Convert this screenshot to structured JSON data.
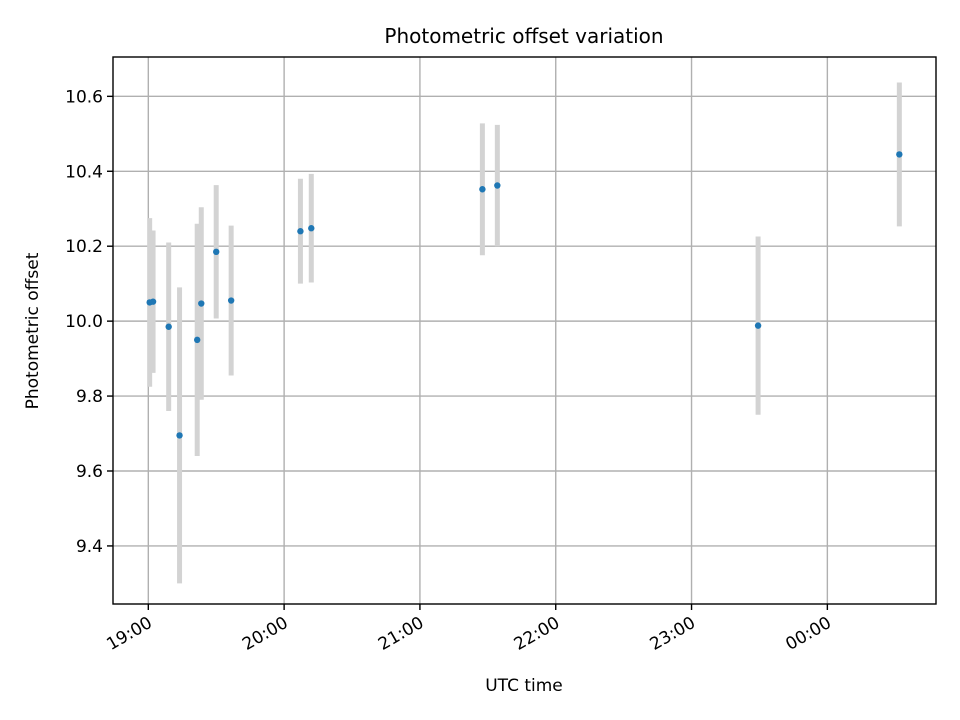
{
  "chart_data": {
    "type": "scatter",
    "title": "Photometric offset variation",
    "xlabel": "UTC time",
    "ylabel": "Photometric offset",
    "x_unit": "hour",
    "x_ticks": [
      {
        "value": 19,
        "label": "19:00"
      },
      {
        "value": 20,
        "label": "20:00"
      },
      {
        "value": 21,
        "label": "21:00"
      },
      {
        "value": 22,
        "label": "22:00"
      },
      {
        "value": 23,
        "label": "23:00"
      },
      {
        "value": 24,
        "label": "00:00"
      }
    ],
    "y_ticks": [
      {
        "value": 9.4,
        "label": "9.4"
      },
      {
        "value": 9.6,
        "label": "9.6"
      },
      {
        "value": 9.8,
        "label": "9.8"
      },
      {
        "value": 10.0,
        "label": "10.0"
      },
      {
        "value": 10.2,
        "label": "10.2"
      },
      {
        "value": 10.4,
        "label": "10.4"
      },
      {
        "value": 10.6,
        "label": "10.6"
      }
    ],
    "xlim": [
      18.74,
      24.8
    ],
    "ylim": [
      9.245,
      10.705
    ],
    "grid": true,
    "marker_color": "#1f77b4",
    "errorbar_color": "#d3d3d3",
    "points": [
      {
        "x": 19.01,
        "y": 10.05,
        "yerr": 0.225
      },
      {
        "x": 19.035,
        "y": 10.052,
        "yerr": 0.19
      },
      {
        "x": 19.15,
        "y": 9.985,
        "yerr": 0.225
      },
      {
        "x": 19.23,
        "y": 9.695,
        "yerr": 0.395
      },
      {
        "x": 19.36,
        "y": 9.95,
        "yerr": 0.31
      },
      {
        "x": 19.39,
        "y": 10.047,
        "yerr": 0.257
      },
      {
        "x": 19.5,
        "y": 10.185,
        "yerr": 0.178
      },
      {
        "x": 19.61,
        "y": 10.055,
        "yerr": 0.2
      },
      {
        "x": 20.12,
        "y": 10.24,
        "yerr": 0.14
      },
      {
        "x": 20.2,
        "y": 10.248,
        "yerr": 0.145
      },
      {
        "x": 21.46,
        "y": 10.352,
        "yerr": 0.176
      },
      {
        "x": 21.57,
        "y": 10.362,
        "yerr": 0.162
      },
      {
        "x": 23.49,
        "y": 9.988,
        "yerr": 0.238
      },
      {
        "x": 24.53,
        "y": 10.445,
        "yerr": 0.192
      }
    ]
  }
}
